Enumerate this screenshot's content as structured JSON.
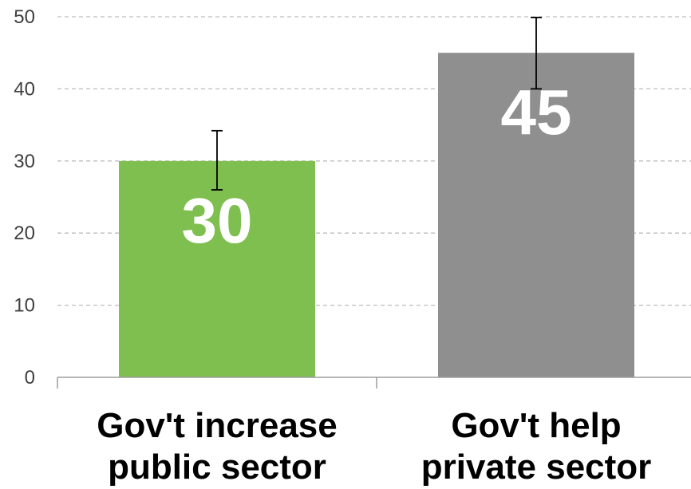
{
  "chart_data": {
    "type": "bar",
    "categories": [
      [
        "Gov't increase",
        "public sector"
      ],
      [
        "Gov't help",
        "private sector"
      ]
    ],
    "values": [
      30,
      45
    ],
    "error_bars": [
      {
        "low": 26,
        "high": 34.2
      },
      {
        "low": 40,
        "high": 49.9
      }
    ],
    "colors": [
      "#7fbf50",
      "#8f8f8f"
    ],
    "ylim": [
      0,
      50
    ],
    "yticks": [
      "0",
      "10",
      "20",
      "30",
      "40",
      "50"
    ],
    "grid": true,
    "title": "",
    "xlabel": "",
    "ylabel": ""
  }
}
